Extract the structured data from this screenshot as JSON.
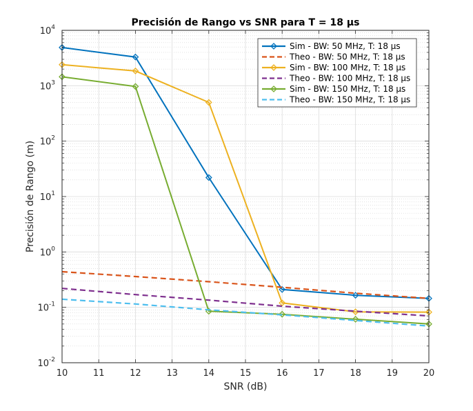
{
  "chart_data": {
    "type": "line",
    "title": "Precisión de Rango vs SNR para T = 18 µs",
    "xlabel": "SNR (dB)",
    "ylabel": "Precisión de Rango (m)",
    "xlim": [
      10,
      20
    ],
    "ylim": [
      0.01,
      10000
    ],
    "yscale": "log",
    "grid": true,
    "minor_grid": true,
    "legend_position": "top-right",
    "x_ticks": [
      "10",
      "11",
      "12",
      "13",
      "14",
      "15",
      "16",
      "17",
      "18",
      "19",
      "20"
    ],
    "y_ticks": [
      {
        "base": "10",
        "exp": "-2"
      },
      {
        "base": "10",
        "exp": "-1"
      },
      {
        "base": "10",
        "exp": "0"
      },
      {
        "base": "10",
        "exp": "1"
      },
      {
        "base": "10",
        "exp": "2"
      },
      {
        "base": "10",
        "exp": "3"
      },
      {
        "base": "10",
        "exp": "4"
      }
    ],
    "series": [
      {
        "name": "Sim - BW: 50 MHz, T: 18 µs",
        "style": "solid-marker",
        "color": "#0072BD",
        "x": [
          10,
          12,
          14,
          16,
          18,
          20
        ],
        "y": [
          4900,
          3300,
          22,
          0.21,
          0.165,
          0.145
        ]
      },
      {
        "name": "Theo - BW: 50 MHz, T: 18 µs",
        "style": "dashed",
        "color": "#D95319",
        "x": [
          10,
          12,
          14,
          16,
          18,
          20
        ],
        "y": [
          0.44,
          0.36,
          0.29,
          0.23,
          0.18,
          0.145
        ]
      },
      {
        "name": "Sim - BW: 100 MHz, T: 18 µs",
        "style": "solid-marker",
        "color": "#EDB120",
        "x": [
          10,
          12,
          14,
          16,
          18,
          20
        ],
        "y": [
          2400,
          1850,
          500,
          0.12,
          0.083,
          0.082
        ]
      },
      {
        "name": "Theo - BW: 100 MHz, T: 18 µs",
        "style": "dashed",
        "color": "#7E2F8E",
        "x": [
          10,
          12,
          14,
          16,
          18,
          20
        ],
        "y": [
          0.22,
          0.17,
          0.135,
          0.105,
          0.085,
          0.07
        ]
      },
      {
        "name": "Sim - BW: 150 MHz, T: 18 µs",
        "style": "solid-marker",
        "color": "#77AC30",
        "x": [
          10,
          12,
          14,
          16,
          18,
          20
        ],
        "y": [
          1450,
          970,
          0.085,
          0.075,
          0.061,
          0.05
        ]
      },
      {
        "name": "Theo - BW: 150 MHz, T: 18 µs",
        "style": "dashed",
        "color": "#4DBEEE",
        "x": [
          10,
          12,
          14,
          16,
          18,
          20
        ],
        "y": [
          0.14,
          0.115,
          0.09,
          0.073,
          0.058,
          0.046
        ]
      }
    ]
  }
}
